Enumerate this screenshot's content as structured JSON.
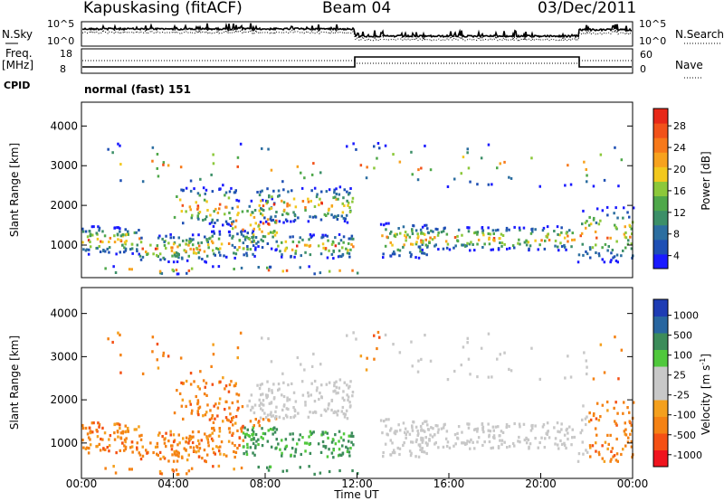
{
  "header": {
    "station": "Kapuskasing (fitACF)",
    "beam": "Beam 04",
    "date": "03/Dec/2011"
  },
  "noise_panel": {
    "left_label": "N.Sky",
    "right_label": "N.Search",
    "left_ticks": [
      "10^5",
      "10^0"
    ],
    "right_ticks": [
      "10^5",
      "10^0"
    ]
  },
  "freq_panel": {
    "left_label_1": "Freq.",
    "left_label_2": "[MHz]",
    "right_label": "Nave",
    "left_ticks": [
      "18",
      "8"
    ],
    "right_ticks": [
      "60",
      "0"
    ]
  },
  "cpid": {
    "label": "CPID",
    "value": "normal (fast) 151"
  },
  "colors": {
    "power_scale": [
      "#1a1aff",
      "#1e4fb4",
      "#2c6ea0",
      "#3c8f68",
      "#4fa84a",
      "#8cc83a",
      "#f2c81e",
      "#f7a21e",
      "#f7791a",
      "#f2521a",
      "#e82818"
    ],
    "velocity_scale": [
      "#f0141e",
      "#f45014",
      "#f48214",
      "#f4a01e",
      "#c8c8c8",
      "#c8c8c8",
      "#50c83c",
      "#3c8c5a",
      "#2866a0",
      "#1e3cb4"
    ]
  },
  "chart_data": [
    {
      "type": "heatmap",
      "title": "",
      "xlabel": "",
      "ylabel": "Slant Range [km]",
      "ylim": [
        180,
        4600
      ],
      "yticks": [
        "1000",
        "2000",
        "3000",
        "4000"
      ],
      "ytick_values": [
        1000,
        2000,
        3000,
        4000
      ],
      "xlim": [
        0,
        24
      ],
      "colorbar": {
        "label": "Power [dB]",
        "ticks": [
          "28",
          "24",
          "20",
          "16",
          "12",
          "8",
          "4"
        ],
        "range": [
          0,
          30
        ]
      }
    },
    {
      "type": "heatmap",
      "title": "",
      "xlabel": "Time UT",
      "ylabel": "Slant Range [km]",
      "ylim": [
        180,
        4600
      ],
      "yticks": [
        "1000",
        "2000",
        "3000",
        "4000"
      ],
      "ytick_values": [
        1000,
        2000,
        3000,
        4000
      ],
      "xlim": [
        0,
        24
      ],
      "xticks": [
        "00:00",
        "04:00",
        "08:00",
        "12:00",
        "16:00",
        "20:00",
        "00:00"
      ],
      "xtick_values": [
        0,
        4,
        8,
        12,
        16,
        20,
        24
      ],
      "colorbar": {
        "label": "Velocity [m s^-1]",
        "ticks": [
          "1000",
          "500",
          "100",
          "25",
          "-25",
          "-100",
          "-500",
          "-1000"
        ]
      }
    }
  ]
}
